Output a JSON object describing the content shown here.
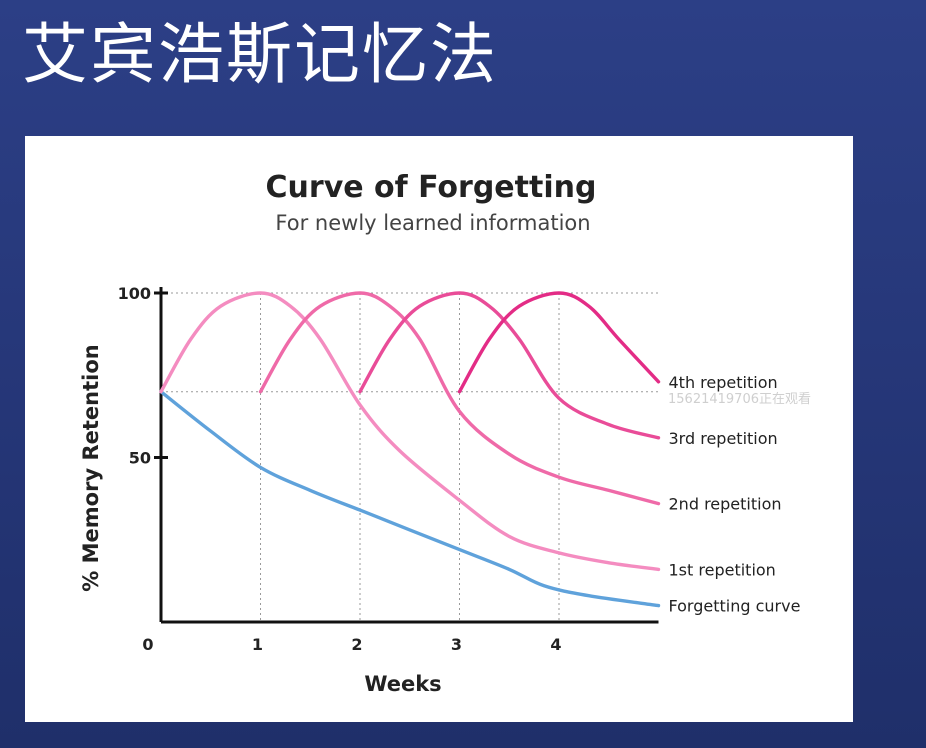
{
  "slide": {
    "title": "艾宾浩斯记忆法"
  },
  "watermark": "15621419706正在观看",
  "chart_data": {
    "type": "line",
    "title": "Curve of Forgetting",
    "subtitle": "For newly learned information",
    "xlabel": "Weeks",
    "ylabel": "% Memory Retention",
    "xlim": [
      0,
      5
    ],
    "ylim": [
      0,
      100
    ],
    "x_ticks": [
      0,
      1,
      2,
      3,
      4
    ],
    "x_tick_labels": [
      "0",
      "1",
      "2",
      "3",
      "4"
    ],
    "y_ticks": [
      50,
      100
    ],
    "y_tick_labels": [
      "50",
      "100"
    ],
    "grid": "dotted",
    "legend": "right-side-labels",
    "series": [
      {
        "name": "Forgetting curve",
        "color": "#5fa2db",
        "points": [
          [
            0,
            70
          ],
          [
            0.5,
            58
          ],
          [
            1,
            47
          ],
          [
            1.5,
            40
          ],
          [
            2,
            34
          ],
          [
            2.5,
            28
          ],
          [
            3,
            22
          ],
          [
            3.5,
            16
          ],
          [
            3.85,
            11
          ],
          [
            4.3,
            8
          ],
          [
            5,
            5
          ]
        ]
      },
      {
        "name": "1st repetition",
        "color": "#f48cc0",
        "points": [
          [
            0,
            70
          ],
          [
            0.3,
            86
          ],
          [
            0.6,
            96
          ],
          [
            1,
            100
          ],
          [
            1.3,
            96
          ],
          [
            1.6,
            86
          ],
          [
            2,
            66
          ],
          [
            2.4,
            52
          ],
          [
            3,
            37
          ],
          [
            3.5,
            26
          ],
          [
            4,
            21
          ],
          [
            4.5,
            18
          ],
          [
            5,
            16
          ]
        ]
      },
      {
        "name": "2nd repetition",
        "color": "#ef6aa8",
        "points": [
          [
            1,
            70
          ],
          [
            1.3,
            86
          ],
          [
            1.6,
            96
          ],
          [
            2,
            100
          ],
          [
            2.3,
            96
          ],
          [
            2.6,
            86
          ],
          [
            3,
            64
          ],
          [
            3.5,
            51
          ],
          [
            4,
            44
          ],
          [
            4.5,
            40
          ],
          [
            5,
            36
          ]
        ]
      },
      {
        "name": "3rd repetition",
        "color": "#e94c98",
        "points": [
          [
            2,
            70
          ],
          [
            2.3,
            86
          ],
          [
            2.6,
            96
          ],
          [
            3,
            100
          ],
          [
            3.3,
            96
          ],
          [
            3.6,
            86
          ],
          [
            4,
            68
          ],
          [
            4.5,
            60
          ],
          [
            5,
            56
          ]
        ]
      },
      {
        "name": "4th repetition",
        "color": "#e32c86",
        "points": [
          [
            3,
            70
          ],
          [
            3.3,
            86
          ],
          [
            3.6,
            96
          ],
          [
            4,
            100
          ],
          [
            4.3,
            96
          ],
          [
            4.6,
            86
          ],
          [
            5,
            73
          ]
        ]
      }
    ]
  }
}
